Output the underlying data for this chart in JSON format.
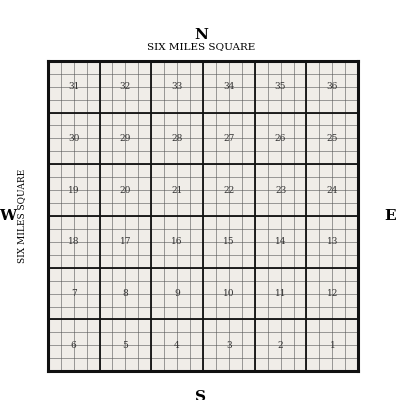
{
  "title_top": "N",
  "subtitle_top": "SIX MILES SQUARE",
  "label_bottom": "S",
  "label_left": "W",
  "label_right": "E",
  "side_label": "SIX MILES SQUARE",
  "background_color": "#f0ede8",
  "grid_color": "#555555",
  "outer_border_color": "#111111",
  "text_color": "#333333",
  "section_numbers": [
    [
      31,
      32,
      33,
      34,
      35,
      36
    ],
    [
      30,
      29,
      28,
      27,
      26,
      25
    ],
    [
      19,
      20,
      21,
      22,
      23,
      24
    ],
    [
      18,
      17,
      16,
      15,
      14,
      13
    ],
    [
      7,
      8,
      9,
      10,
      11,
      12
    ],
    [
      6,
      5,
      4,
      3,
      2,
      1
    ]
  ],
  "n_sections": 6,
  "n_subsections": 4,
  "figsize": [
    3.98,
    4.0
  ],
  "dpi": 100
}
